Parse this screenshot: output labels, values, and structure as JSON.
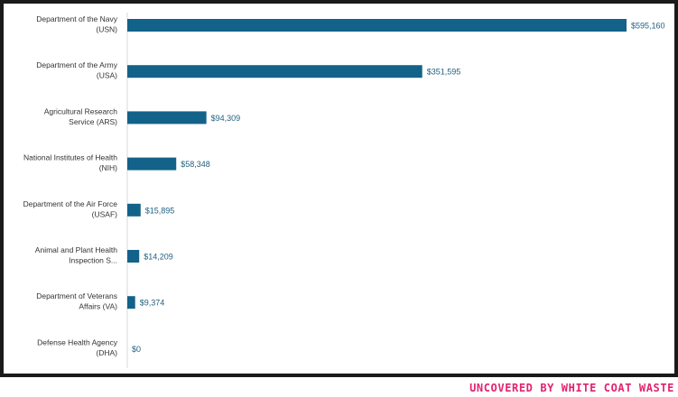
{
  "chart_data": {
    "type": "bar",
    "orientation": "horizontal",
    "categories": [
      [
        "Department of the Navy",
        "(USN)"
      ],
      [
        "Department of the Army",
        "(USA)"
      ],
      [
        "Agricultural Research",
        "Service (ARS)"
      ],
      [
        "National Institutes of Health",
        "(NIH)"
      ],
      [
        "Department of the Air Force",
        "(USAF)"
      ],
      [
        "Animal and Plant Health",
        "Inspection S..."
      ],
      [
        "Department of Veterans",
        "Affairs (VA)"
      ],
      [
        "Defense Health Agency",
        "(DHA)"
      ]
    ],
    "values": [
      595160,
      351595,
      94309,
      58348,
      15895,
      14209,
      9374,
      0
    ],
    "value_labels": [
      "$595,160",
      "$351,595",
      "$94,309",
      "$58,348",
      "$15,895",
      "$14,209",
      "$9,374",
      "$0"
    ],
    "xlim": [
      0,
      595160
    ],
    "grid": false,
    "bar_color": "#13628a",
    "label_color": "#1f5f80"
  },
  "footer": {
    "brand": "UNCOVERED BY WHITE COAT WASTE",
    "brand_color": "#e0236f"
  }
}
